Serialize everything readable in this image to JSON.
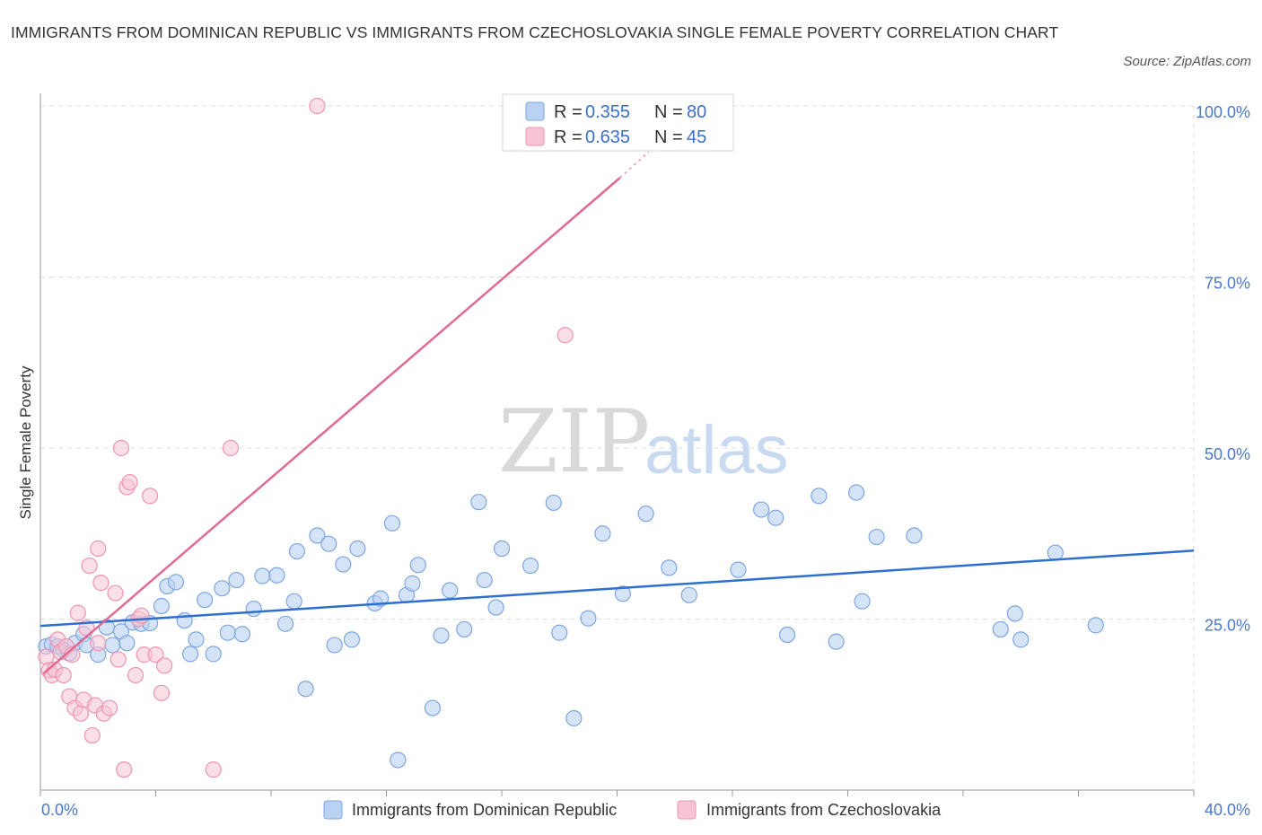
{
  "header": {
    "title": "IMMIGRANTS FROM DOMINICAN REPUBLIC VS IMMIGRANTS FROM CZECHOSLOVAKIA SINGLE FEMALE POVERTY CORRELATION CHART",
    "source": "Source: ZipAtlas.com"
  },
  "watermark": {
    "zip": "ZIP",
    "atlas": "atlas"
  },
  "colors": {
    "blue_fill": "#b9d1f2",
    "blue_stroke": "#7ea6e0",
    "blue_line": "#2f6fd0",
    "pink_fill": "#f7c4d4",
    "pink_stroke": "#ee94b0",
    "pink_line": "#e06a92",
    "grid": "#dddddd",
    "axis": "#999999"
  },
  "legend": {
    "rows": [
      {
        "r_label": "R =",
        "r_value": "0.355",
        "n_label": "N =",
        "n_value": "80"
      },
      {
        "r_label": "R =",
        "r_value": "0.635",
        "n_label": "N =",
        "n_value": "45"
      }
    ]
  },
  "chart_data": {
    "type": "scatter",
    "ylabel": "Single Female Poverty",
    "xlim": [
      0,
      40
    ],
    "ylim": [
      0,
      100
    ],
    "x_tick_labels": [
      "0.0%",
      "40.0%"
    ],
    "y_ticks": [
      25,
      50,
      75,
      100
    ],
    "y_tick_labels": [
      "25.0%",
      "50.0%",
      "75.0%",
      "100.0%"
    ],
    "grid": true,
    "legend_placement": "top-center and bottom",
    "series": [
      {
        "name": "Immigrants from Dominican Republic",
        "color": "#b9d1f2",
        "trend": {
          "x": [
            0,
            40
          ],
          "y": [
            24.0,
            35.0
          ]
        },
        "points": [
          [
            0.2,
            21.0
          ],
          [
            0.4,
            21.3
          ],
          [
            0.6,
            21.0
          ],
          [
            0.8,
            20.5
          ],
          [
            1.0,
            20.0
          ],
          [
            1.2,
            21.5
          ],
          [
            1.5,
            22.8
          ],
          [
            1.6,
            21.2
          ],
          [
            2.0,
            19.8
          ],
          [
            2.3,
            23.8
          ],
          [
            2.5,
            21.2
          ],
          [
            2.8,
            23.2
          ],
          [
            3.0,
            21.5
          ],
          [
            3.2,
            24.5
          ],
          [
            3.5,
            24.3
          ],
          [
            3.8,
            24.4
          ],
          [
            4.2,
            26.9
          ],
          [
            4.4,
            29.8
          ],
          [
            4.7,
            30.4
          ],
          [
            5.0,
            24.8
          ],
          [
            5.2,
            19.9
          ],
          [
            5.4,
            22.0
          ],
          [
            5.7,
            27.8
          ],
          [
            6.0,
            19.9
          ],
          [
            6.3,
            29.5
          ],
          [
            6.5,
            23.0
          ],
          [
            6.8,
            30.7
          ],
          [
            7.0,
            22.8
          ],
          [
            7.4,
            26.5
          ],
          [
            7.7,
            31.3
          ],
          [
            8.2,
            31.4
          ],
          [
            8.5,
            24.3
          ],
          [
            8.8,
            27.6
          ],
          [
            8.9,
            34.9
          ],
          [
            9.2,
            14.8
          ],
          [
            9.6,
            37.2
          ],
          [
            10.0,
            36.0
          ],
          [
            10.2,
            21.2
          ],
          [
            10.5,
            33.0
          ],
          [
            10.8,
            22.0
          ],
          [
            11.0,
            35.3
          ],
          [
            11.6,
            27.3
          ],
          [
            11.8,
            28.0
          ],
          [
            12.2,
            39.0
          ],
          [
            12.4,
            4.4
          ],
          [
            12.7,
            28.5
          ],
          [
            12.9,
            30.2
          ],
          [
            13.1,
            32.9
          ],
          [
            13.6,
            12.0
          ],
          [
            13.9,
            22.6
          ],
          [
            14.2,
            29.2
          ],
          [
            14.7,
            23.5
          ],
          [
            15.2,
            42.1
          ],
          [
            15.4,
            30.7
          ],
          [
            15.8,
            26.7
          ],
          [
            16.0,
            35.3
          ],
          [
            17.0,
            32.8
          ],
          [
            17.8,
            42.0
          ],
          [
            18.0,
            23.0
          ],
          [
            18.5,
            10.5
          ],
          [
            19.0,
            25.1
          ],
          [
            19.5,
            37.5
          ],
          [
            20.2,
            28.7
          ],
          [
            21.0,
            40.4
          ],
          [
            21.8,
            32.5
          ],
          [
            22.5,
            28.5
          ],
          [
            24.2,
            32.2
          ],
          [
            25.0,
            41.0
          ],
          [
            25.5,
            39.8
          ],
          [
            25.9,
            22.7
          ],
          [
            27.0,
            43.0
          ],
          [
            27.6,
            21.7
          ],
          [
            28.3,
            43.5
          ],
          [
            28.5,
            27.6
          ],
          [
            29.0,
            37.0
          ],
          [
            30.3,
            37.2
          ],
          [
            33.3,
            23.5
          ],
          [
            33.8,
            25.8
          ],
          [
            34.0,
            22.0
          ],
          [
            35.2,
            34.7
          ],
          [
            36.6,
            24.1
          ]
        ]
      },
      {
        "name": "Immigrants from Czechoslovakia",
        "color": "#f7c4d4",
        "trend": {
          "x": [
            0.1,
            20.1
          ],
          "y": [
            17.0,
            89.5
          ]
        },
        "trend_dashed": {
          "x": [
            20.1,
            21.1
          ],
          "y": [
            89.5,
            93.3
          ]
        },
        "points": [
          [
            0.2,
            19.5
          ],
          [
            0.3,
            17.5
          ],
          [
            0.4,
            16.8
          ],
          [
            0.5,
            17.6
          ],
          [
            0.6,
            22.0
          ],
          [
            0.7,
            20.2
          ],
          [
            0.8,
            16.8
          ],
          [
            0.9,
            21.0
          ],
          [
            1.0,
            13.7
          ],
          [
            1.1,
            19.8
          ],
          [
            1.2,
            12.0
          ],
          [
            1.3,
            25.9
          ],
          [
            1.4,
            11.2
          ],
          [
            1.5,
            13.2
          ],
          [
            1.6,
            23.7
          ],
          [
            1.7,
            32.8
          ],
          [
            1.8,
            8.0
          ],
          [
            1.9,
            12.4
          ],
          [
            2.0,
            21.5
          ],
          [
            2.0,
            35.3
          ],
          [
            2.1,
            30.3
          ],
          [
            2.2,
            11.2
          ],
          [
            2.4,
            12.0
          ],
          [
            2.6,
            28.8
          ],
          [
            2.7,
            19.1
          ],
          [
            2.8,
            50.0
          ],
          [
            2.9,
            3.0
          ],
          [
            3.0,
            44.3
          ],
          [
            3.1,
            45.0
          ],
          [
            3.3,
            16.8
          ],
          [
            3.4,
            25.0
          ],
          [
            3.5,
            25.5
          ],
          [
            3.6,
            19.8
          ],
          [
            3.8,
            43.0
          ],
          [
            4.0,
            19.8
          ],
          [
            4.2,
            14.2
          ],
          [
            4.3,
            18.2
          ],
          [
            6.0,
            3.0
          ],
          [
            6.6,
            50.0
          ],
          [
            9.6,
            100.0
          ],
          [
            18.2,
            66.5
          ]
        ]
      }
    ]
  },
  "bottom_legend": {
    "items": [
      "Immigrants from Dominican Republic",
      "Immigrants from Czechoslovakia"
    ]
  }
}
